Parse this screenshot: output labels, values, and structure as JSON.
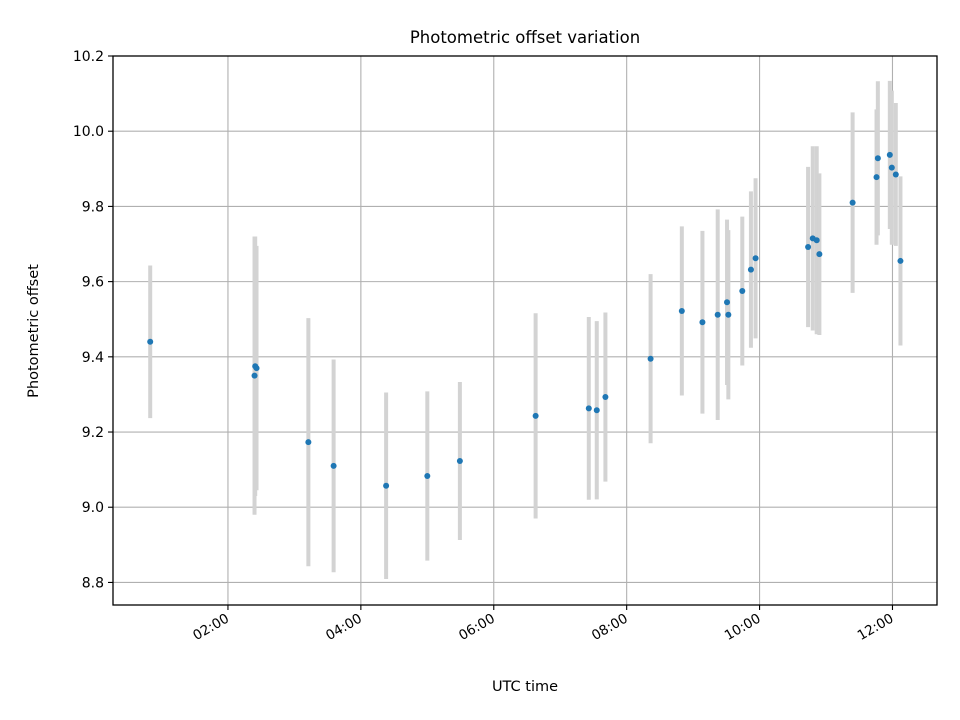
{
  "chart_data": {
    "type": "scatter",
    "title": "Photometric offset variation",
    "xlabel": "UTC time",
    "ylabel": "Photometric offset",
    "x_unit": "hours",
    "xlim": [
      0.27,
      12.67
    ],
    "ylim": [
      8.74,
      10.2
    ],
    "grid": true,
    "x_ticks": [
      {
        "value": 2,
        "label": "02:00"
      },
      {
        "value": 4,
        "label": "04:00"
      },
      {
        "value": 6,
        "label": "06:00"
      },
      {
        "value": 8,
        "label": "08:00"
      },
      {
        "value": 10,
        "label": "10:00"
      },
      {
        "value": 12,
        "label": "12:00"
      }
    ],
    "y_ticks": [
      {
        "value": 8.8,
        "label": "8.8"
      },
      {
        "value": 9.0,
        "label": "9.0"
      },
      {
        "value": 9.2,
        "label": "9.2"
      },
      {
        "value": 9.4,
        "label": "9.4"
      },
      {
        "value": 9.6,
        "label": "9.6"
      },
      {
        "value": 9.8,
        "label": "9.8"
      },
      {
        "value": 10.0,
        "label": "10.0"
      },
      {
        "value": 10.2,
        "label": "10.2"
      }
    ],
    "colors": {
      "points": "#1f77b4",
      "errorbars": "#d3d3d3",
      "grid": "#b0b0b0"
    },
    "points": [
      {
        "x": 0.83,
        "y": 9.44,
        "err": 0.203
      },
      {
        "x": 2.4,
        "y": 9.35,
        "err": 0.37
      },
      {
        "x": 2.41,
        "y": 9.375,
        "err": 0.345
      },
      {
        "x": 2.43,
        "y": 9.37,
        "err": 0.325
      },
      {
        "x": 3.21,
        "y": 9.173,
        "err": 0.33
      },
      {
        "x": 3.59,
        "y": 9.11,
        "err": 0.283
      },
      {
        "x": 4.38,
        "y": 9.057,
        "err": 0.248
      },
      {
        "x": 5.0,
        "y": 9.083,
        "err": 0.225
      },
      {
        "x": 5.49,
        "y": 9.123,
        "err": 0.21
      },
      {
        "x": 6.63,
        "y": 9.243,
        "err": 0.273
      },
      {
        "x": 7.43,
        "y": 9.263,
        "err": 0.243
      },
      {
        "x": 7.55,
        "y": 9.258,
        "err": 0.237
      },
      {
        "x": 7.68,
        "y": 9.293,
        "err": 0.225
      },
      {
        "x": 8.36,
        "y": 9.395,
        "err": 0.225
      },
      {
        "x": 8.83,
        "y": 9.522,
        "err": 0.225
      },
      {
        "x": 9.14,
        "y": 9.492,
        "err": 0.243
      },
      {
        "x": 9.37,
        "y": 9.512,
        "err": 0.28
      },
      {
        "x": 9.51,
        "y": 9.545,
        "err": 0.22
      },
      {
        "x": 9.53,
        "y": 9.512,
        "err": 0.225
      },
      {
        "x": 9.74,
        "y": 9.575,
        "err": 0.198
      },
      {
        "x": 9.87,
        "y": 9.632,
        "err": 0.208
      },
      {
        "x": 9.94,
        "y": 9.662,
        "err": 0.213
      },
      {
        "x": 10.73,
        "y": 9.692,
        "err": 0.213
      },
      {
        "x": 10.8,
        "y": 9.715,
        "err": 0.245
      },
      {
        "x": 10.86,
        "y": 9.71,
        "err": 0.25
      },
      {
        "x": 10.9,
        "y": 9.673,
        "err": 0.215
      },
      {
        "x": 11.4,
        "y": 9.81,
        "err": 0.24
      },
      {
        "x": 11.76,
        "y": 9.878,
        "err": 0.18
      },
      {
        "x": 11.78,
        "y": 9.928,
        "err": 0.205
      },
      {
        "x": 11.96,
        "y": 9.937,
        "err": 0.197
      },
      {
        "x": 11.99,
        "y": 9.903,
        "err": 0.205
      },
      {
        "x": 12.05,
        "y": 9.885,
        "err": 0.19
      },
      {
        "x": 12.12,
        "y": 9.655,
        "err": 0.225
      }
    ]
  }
}
